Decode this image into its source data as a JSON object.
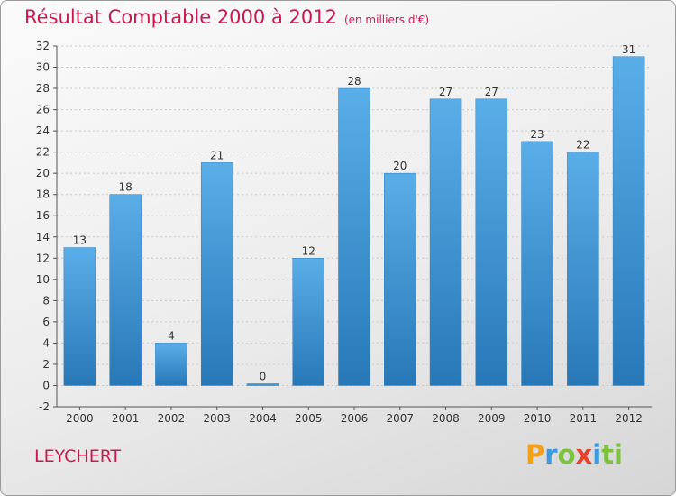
{
  "title": "Résultat Comptable 2000 à 2012",
  "subtitle": "(en milliers d'€)",
  "place": "LEYCHERT",
  "logo": [
    "P",
    "r",
    "o",
    "x",
    "i",
    "ti"
  ],
  "colors": {
    "title": "#c8184f",
    "bar_top": "#5aaee8",
    "bar_bottom": "#2878b8"
  },
  "chart_data": {
    "type": "bar",
    "title": "Résultat Comptable 2000 à 2012",
    "categories": [
      "2000",
      "2001",
      "2002",
      "2003",
      "2004",
      "2005",
      "2006",
      "2007",
      "2008",
      "2009",
      "2010",
      "2011",
      "2012"
    ],
    "values": [
      13,
      18,
      4,
      21,
      0,
      12,
      28,
      20,
      27,
      27,
      23,
      22,
      31
    ],
    "ylim": [
      -2,
      32
    ],
    "yticks": [
      -2,
      0,
      2,
      4,
      6,
      8,
      10,
      12,
      14,
      16,
      18,
      20,
      22,
      24,
      26,
      28,
      30,
      32
    ],
    "grid": true,
    "xlabel": "",
    "ylabel": ""
  }
}
